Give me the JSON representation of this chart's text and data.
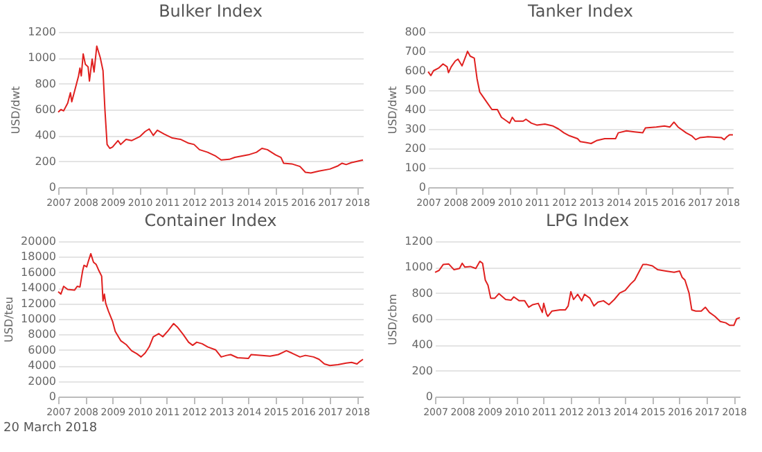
{
  "chart_data": [
    {
      "type": "line",
      "title": "Bulker Index",
      "ylabel": "USD/dwt",
      "xlim": [
        2007,
        2018.22
      ],
      "xticks": [
        2007,
        2008,
        2009,
        2010,
        2011,
        2012,
        2013,
        2014,
        2015,
        2016,
        2017,
        2018
      ],
      "ylim": [
        0,
        1200
      ],
      "yticks": [
        0,
        200,
        400,
        600,
        800,
        1000,
        1200
      ],
      "grid": "y",
      "legend": false,
      "marker": "none",
      "x": [
        2007.0,
        2007.1,
        2007.2,
        2007.35,
        2007.45,
        2007.5,
        2007.65,
        2007.75,
        2007.8,
        2007.85,
        2007.92,
        2008.0,
        2008.1,
        2008.15,
        2008.25,
        2008.32,
        2008.42,
        2008.55,
        2008.65,
        2008.72,
        2008.8,
        2008.9,
        2009.0,
        2009.2,
        2009.3,
        2009.5,
        2009.7,
        2010.0,
        2010.2,
        2010.35,
        2010.5,
        2010.65,
        2010.9,
        2011.2,
        2011.5,
        2011.8,
        2012.0,
        2012.2,
        2012.5,
        2012.8,
        2013.0,
        2013.3,
        2013.5,
        2014.0,
        2014.3,
        2014.5,
        2014.7,
        2015.0,
        2015.2,
        2015.3,
        2015.6,
        2015.9,
        2016.1,
        2016.3,
        2016.6,
        2017.0,
        2017.3,
        2017.45,
        2017.6,
        2017.8,
        2018.0,
        2018.22
      ],
      "series": [
        {
          "color": "#e0201f",
          "values": [
            580,
            600,
            590,
            650,
            730,
            660,
            780,
            860,
            920,
            860,
            1030,
            950,
            930,
            820,
            990,
            890,
            1090,
            1000,
            900,
            600,
            330,
            300,
            310,
            360,
            330,
            370,
            360,
            390,
            430,
            450,
            400,
            440,
            410,
            380,
            370,
            340,
            330,
            290,
            270,
            240,
            210,
            215,
            230,
            250,
            270,
            300,
            290,
            250,
            230,
            185,
            180,
            160,
            115,
            110,
            125,
            140,
            165,
            185,
            175,
            190,
            200,
            210
          ]
        }
      ]
    },
    {
      "type": "line",
      "title": "Tanker Index",
      "ylabel": "USD/dwt",
      "xlim": [
        2007,
        2018.22
      ],
      "xticks": [
        2007,
        2008,
        2009,
        2010,
        2011,
        2012,
        2013,
        2014,
        2015,
        2016,
        2017,
        2018
      ],
      "ylim": [
        0,
        800
      ],
      "yticks": [
        0,
        100,
        200,
        300,
        400,
        500,
        600,
        700,
        800
      ],
      "grid": "y",
      "legend": false,
      "marker": "none",
      "x": [
        2007.0,
        2007.1,
        2007.2,
        2007.4,
        2007.55,
        2007.7,
        2007.75,
        2007.85,
        2008.0,
        2008.1,
        2008.25,
        2008.4,
        2008.45,
        2008.55,
        2008.7,
        2008.8,
        2008.9,
        2009.0,
        2009.2,
        2009.35,
        2009.55,
        2009.7,
        2009.9,
        2010.0,
        2010.1,
        2010.2,
        2010.5,
        2010.6,
        2010.8,
        2011.0,
        2011.3,
        2011.6,
        2011.8,
        2012.0,
        2012.2,
        2012.5,
        2012.6,
        2012.8,
        2013.0,
        2013.2,
        2013.5,
        2013.9,
        2014.0,
        2014.3,
        2014.6,
        2014.9,
        2015.0,
        2015.4,
        2015.7,
        2015.9,
        2016.05,
        2016.2,
        2016.5,
        2016.7,
        2016.85,
        2017.0,
        2017.3,
        2017.8,
        2017.9,
        2018.0,
        2018.1,
        2018.22
      ],
      "series": [
        {
          "color": "#e0201f",
          "values": [
            595,
            575,
            600,
            615,
            635,
            620,
            590,
            620,
            650,
            660,
            625,
            680,
            700,
            675,
            665,
            560,
            490,
            470,
            430,
            400,
            400,
            360,
            340,
            330,
            360,
            340,
            340,
            350,
            330,
            320,
            325,
            315,
            300,
            280,
            265,
            250,
            235,
            230,
            225,
            240,
            250,
            250,
            280,
            290,
            285,
            280,
            305,
            310,
            315,
            310,
            335,
            310,
            280,
            265,
            245,
            255,
            260,
            255,
            245,
            260,
            270,
            270
          ]
        }
      ]
    },
    {
      "type": "line",
      "title": "Container Index",
      "ylabel": "USD/teu",
      "xlim": [
        2007,
        2018.22
      ],
      "xticks": [
        2007,
        2008,
        2009,
        2010,
        2011,
        2012,
        2013,
        2014,
        2015,
        2016,
        2017,
        2018
      ],
      "ylim": [
        0,
        20000
      ],
      "yticks": [
        0,
        2000,
        4000,
        6000,
        8000,
        10000,
        12000,
        14000,
        16000,
        18000,
        20000
      ],
      "grid": "y",
      "legend": false,
      "marker": "none",
      "annotations": [
        "20 March 2018"
      ],
      "x": [
        2007.0,
        2007.1,
        2007.2,
        2007.35,
        2007.6,
        2007.7,
        2007.8,
        2007.9,
        2007.95,
        2008.05,
        2008.1,
        2008.2,
        2008.3,
        2008.4,
        2008.5,
        2008.6,
        2008.65,
        2008.7,
        2008.75,
        2008.85,
        2009.0,
        2009.1,
        2009.3,
        2009.5,
        2009.7,
        2009.9,
        2010.05,
        2010.2,
        2010.35,
        2010.5,
        2010.7,
        2010.85,
        2011.05,
        2011.25,
        2011.4,
        2011.6,
        2011.8,
        2011.95,
        2012.1,
        2012.3,
        2012.5,
        2012.8,
        2013.0,
        2013.2,
        2013.35,
        2013.6,
        2014.0,
        2014.1,
        2014.5,
        2014.8,
        2015.1,
        2015.4,
        2015.6,
        2015.9,
        2016.1,
        2016.4,
        2016.6,
        2016.8,
        2017.0,
        2017.3,
        2017.6,
        2017.8,
        2018.0,
        2018.1,
        2018.22
      ],
      "series": [
        {
          "color": "#e0201f",
          "values": [
            13500,
            13200,
            14200,
            13800,
            13700,
            14200,
            14100,
            16200,
            16900,
            16700,
            17300,
            18400,
            17300,
            17000,
            16200,
            15500,
            12300,
            13200,
            12000,
            11000,
            9700,
            8400,
            7200,
            6700,
            5900,
            5500,
            5100,
            5600,
            6400,
            7700,
            8100,
            7700,
            8500,
            9400,
            8900,
            8000,
            7000,
            6600,
            7000,
            6800,
            6400,
            6000,
            5100,
            5300,
            5400,
            5000,
            4900,
            5400,
            5300,
            5200,
            5400,
            5900,
            5600,
            5100,
            5300,
            5100,
            4800,
            4200,
            4000,
            4100,
            4300,
            4400,
            4200,
            4500,
            4800
          ]
        }
      ]
    },
    {
      "type": "line",
      "title": "LPG Index",
      "ylabel": "USD/cbm",
      "xlim": [
        2007,
        2018.22
      ],
      "xticks": [
        2007,
        2008,
        2009,
        2010,
        2011,
        2012,
        2013,
        2014,
        2015,
        2016,
        2017,
        2018
      ],
      "ylim": [
        0,
        1200
      ],
      "yticks": [
        0,
        200,
        400,
        600,
        800,
        1000,
        1200
      ],
      "grid": "y",
      "legend": false,
      "marker": "none",
      "x": [
        2007.0,
        2007.15,
        2007.3,
        2007.5,
        2007.7,
        2007.9,
        2008.0,
        2008.1,
        2008.3,
        2008.5,
        2008.65,
        2008.75,
        2008.85,
        2008.95,
        2009.05,
        2009.2,
        2009.35,
        2009.6,
        2009.8,
        2009.9,
        2010.1,
        2010.3,
        2010.45,
        2010.6,
        2010.8,
        2010.95,
        2011.0,
        2011.1,
        2011.15,
        2011.3,
        2011.6,
        2011.8,
        2011.9,
        2012.0,
        2012.1,
        2012.25,
        2012.4,
        2012.5,
        2012.7,
        2012.85,
        2013.0,
        2013.2,
        2013.4,
        2013.6,
        2013.8,
        2014.0,
        2014.2,
        2014.35,
        2014.55,
        2014.65,
        2014.8,
        2015.0,
        2015.2,
        2015.5,
        2015.8,
        2016.0,
        2016.1,
        2016.2,
        2016.35,
        2016.45,
        2016.6,
        2016.8,
        2016.95,
        2017.1,
        2017.3,
        2017.5,
        2017.7,
        2017.85,
        2018.0,
        2018.1,
        2018.22
      ],
      "series": [
        {
          "color": "#e0201f",
          "values": [
            960,
            975,
            1020,
            1025,
            980,
            990,
            1030,
            1000,
            1005,
            990,
            1045,
            1030,
            900,
            860,
            760,
            760,
            795,
            750,
            745,
            770,
            740,
            740,
            690,
            710,
            720,
            650,
            720,
            640,
            620,
            660,
            670,
            670,
            700,
            810,
            750,
            790,
            740,
            790,
            760,
            700,
            730,
            740,
            710,
            750,
            800,
            820,
            870,
            900,
            980,
            1020,
            1020,
            1010,
            980,
            970,
            960,
            970,
            920,
            900,
            800,
            670,
            660,
            660,
            690,
            650,
            620,
            580,
            570,
            550,
            550,
            600,
            610
          ]
        }
      ]
    }
  ]
}
